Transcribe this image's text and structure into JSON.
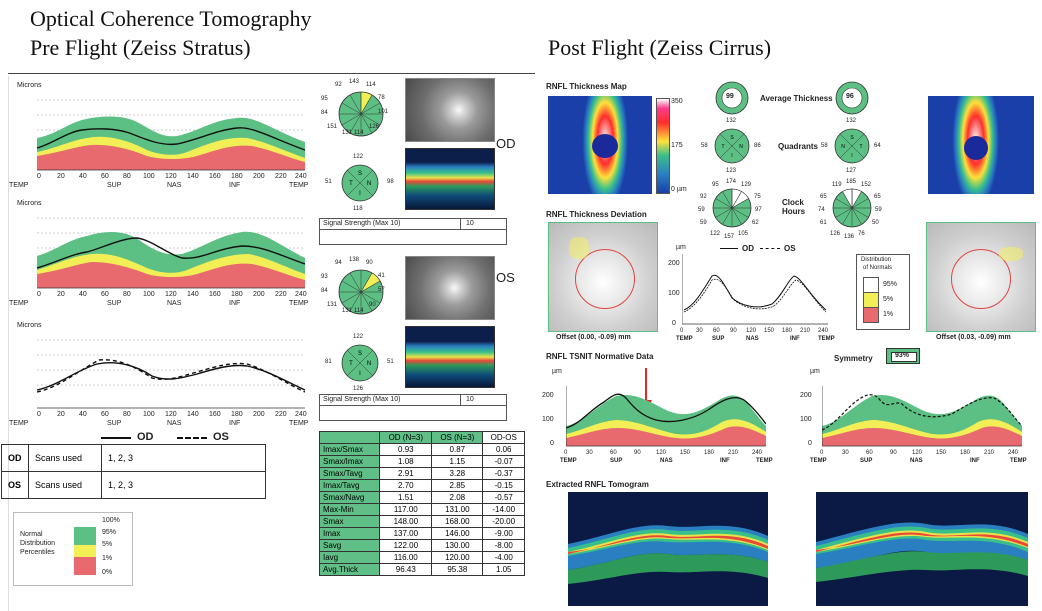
{
  "titles": {
    "pre_line1": "Optical Coherence Tomography",
    "pre_line2": "Pre Flight (Zeiss Stratus)",
    "post": "Post Flight (Zeiss Cirrus)"
  },
  "stratus": {
    "microns_label": "Microns",
    "x_ticks": [
      "0",
      "20",
      "40",
      "60",
      "80",
      "100",
      "120",
      "140",
      "160",
      "180",
      "200",
      "220",
      "240"
    ],
    "x_regions": [
      "TEMP",
      "SUP",
      "NAS",
      "INF",
      "TEMP"
    ],
    "eye_od": "OD",
    "eye_os": "OS",
    "od_clock": [
      "92",
      "143",
      "114",
      "78",
      "101",
      "126",
      "114",
      "131",
      "151",
      "84",
      "95",
      "93"
    ],
    "od_quadrant": [
      "122",
      "98",
      "118",
      "51"
    ],
    "os_clock": [
      "94",
      "138",
      "90",
      "41",
      "57",
      "90",
      "114",
      "131",
      "131",
      "84",
      "93",
      "35"
    ],
    "os_quadrant": [
      "122",
      "51",
      "126",
      "81"
    ],
    "quad_letters": [
      "S",
      "N",
      "I",
      "T"
    ],
    "signal_label": "Signal Strength (Max 10)",
    "signal_od": "10",
    "signal_os": "10",
    "legend_od": "OD",
    "legend_os": "OS",
    "scans": [
      {
        "eye": "OD",
        "label": "Scans used",
        "value": "1, 2, 3"
      },
      {
        "eye": "OS",
        "label": "Scans used",
        "value": "1, 2, 3"
      }
    ],
    "normal_legend": {
      "title_lines": [
        "Normal",
        "Distribution",
        "Percentiles"
      ],
      "ticks": [
        "100%",
        "95%",
        "5%",
        "1%",
        "0%"
      ]
    },
    "table": {
      "headers": [
        "",
        "OD (N=3)",
        "OS (N=3)",
        "OD-OS"
      ],
      "rows": [
        [
          "Imax/Smax",
          "0.93",
          "0.87",
          "0.06"
        ],
        [
          "Smax/Imax",
          "1.08",
          "1.15",
          "-0.07"
        ],
        [
          "Smax/Tavg",
          "2.91",
          "3.28",
          "-0.37"
        ],
        [
          "Imax/Tavg",
          "2.70",
          "2.85",
          "-0.15"
        ],
        [
          "Smax/Navg",
          "1.51",
          "2.08",
          "-0.57"
        ],
        [
          "Max-Min",
          "117.00",
          "131.00",
          "-14.00"
        ],
        [
          "Smax",
          "148.00",
          "168.00",
          "-20.00"
        ],
        [
          "Imax",
          "137.00",
          "146.00",
          "-9.00"
        ],
        [
          "Savg",
          "122.00",
          "130.00",
          "-8.00"
        ],
        [
          "Iavg",
          "116.00",
          "120.00",
          "-4.00"
        ],
        [
          "Avg.Thick",
          "96.43",
          "95.38",
          "1.05"
        ]
      ]
    }
  },
  "cirrus": {
    "map_title": "RNFL Thickness Map",
    "scale_ticks": [
      "350",
      "175",
      "0 µm"
    ],
    "avg_label": "Average Thickness",
    "avg_od": "99",
    "avg_os": "96",
    "quadrants_label": "Quadrants",
    "od_quadrants": [
      "132",
      "86",
      "123",
      "58"
    ],
    "os_quadrants": [
      "132",
      "58",
      "127",
      "64"
    ],
    "clock_label_lines": [
      "Clock",
      "Hours"
    ],
    "od_clock": [
      "174",
      "129",
      "75",
      "97",
      "62",
      "105",
      "157",
      "122",
      "59",
      "59",
      "92",
      "95"
    ],
    "os_clock": [
      "185",
      "152",
      "65",
      "59",
      "50",
      "76",
      "136",
      "126",
      "61",
      "74",
      "65",
      "119"
    ],
    "deviation_title": "RNFL Thickness Deviation",
    "offset_od": "Offset (0.00, -0.09) mm",
    "offset_os": "Offset (0.03, -0.09) mm",
    "mini_y_label": "µm",
    "legend_od": "OD",
    "legend_os": "OS",
    "mini_y_ticks": [
      "200",
      "100",
      "0"
    ],
    "mini_x_ticks": [
      "0",
      "30",
      "60",
      "90",
      "120",
      "150",
      "180",
      "210",
      "240"
    ],
    "x_regions": [
      "TEMP",
      "SUP",
      "NAS",
      "INF",
      "TEMP"
    ],
    "dist_title_lines": [
      "Distribution",
      "of Normals"
    ],
    "dist_items": [
      "95%",
      "5%",
      "1%"
    ],
    "tsnit_title": "RNFL TSNIT Normative Data",
    "symmetry_label": "Symmetry",
    "symmetry_value": "93%",
    "tsnit_y_label": "µm",
    "tsnit_y_ticks": [
      "200",
      "100",
      "0"
    ],
    "tomo_title": "Extracted RNFL Tomogram"
  }
}
